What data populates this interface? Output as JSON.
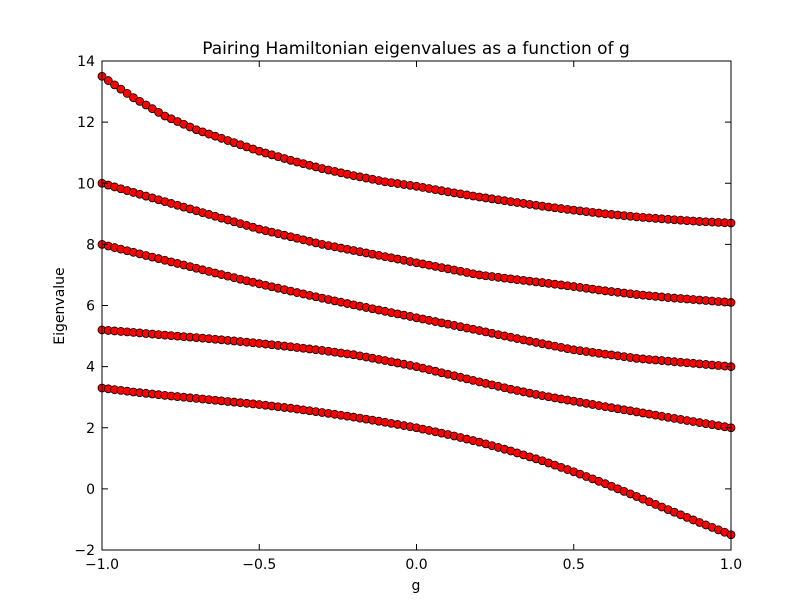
{
  "chart_data": {
    "type": "scatter",
    "title": "Pairing Hamiltonian eigenvalues as a function of g",
    "xlabel": "g",
    "ylabel": "Eigenvalue",
    "xlim": [
      -1.0,
      1.0
    ],
    "ylim": [
      -2,
      14
    ],
    "xticks": [
      -1.0,
      -0.5,
      0.0,
      0.5,
      1.0
    ],
    "xtick_labels": [
      "−1.0",
      "−0.5",
      "0.0",
      "0.5",
      "1.0"
    ],
    "yticks": [
      -2,
      0,
      2,
      4,
      6,
      8,
      10,
      12,
      14
    ],
    "ytick_labels": [
      "−2",
      "0",
      "2",
      "4",
      "6",
      "8",
      "10",
      "12",
      "14"
    ],
    "grid": false,
    "marker_color": "#ff0000",
    "marker_edge_color": "#000000",
    "x": [
      -1.0,
      -0.9,
      -0.8,
      -0.7,
      -0.6,
      -0.5,
      -0.4,
      -0.3,
      -0.2,
      -0.1,
      0.0,
      0.1,
      0.2,
      0.3,
      0.4,
      0.5,
      0.6,
      0.7,
      0.8,
      0.9,
      1.0
    ],
    "series": [
      {
        "values": [
          3.3,
          3.17,
          3.06,
          2.96,
          2.86,
          2.76,
          2.64,
          2.5,
          2.35,
          2.18,
          2.0,
          1.78,
          1.53,
          1.24,
          0.92,
          0.56,
          0.17,
          -0.25,
          -0.68,
          -1.1,
          -1.5
        ]
      },
      {
        "values": [
          5.2,
          5.12,
          5.03,
          4.95,
          4.86,
          4.76,
          4.65,
          4.53,
          4.39,
          4.2,
          4.0,
          3.75,
          3.5,
          3.26,
          3.05,
          2.87,
          2.69,
          2.52,
          2.34,
          2.17,
          2.0
        ]
      },
      {
        "values": [
          8.0,
          7.74,
          7.48,
          7.22,
          6.96,
          6.71,
          6.47,
          6.24,
          6.02,
          5.81,
          5.6,
          5.39,
          5.18,
          4.96,
          4.75,
          4.55,
          4.41,
          4.27,
          4.18,
          4.09,
          4.0
        ]
      },
      {
        "values": [
          10.0,
          9.7,
          9.4,
          9.1,
          8.8,
          8.5,
          8.25,
          8.0,
          7.8,
          7.6,
          7.4,
          7.2,
          7.0,
          6.87,
          6.75,
          6.62,
          6.48,
          6.36,
          6.26,
          6.18,
          6.1
        ]
      },
      {
        "values": [
          13.5,
          12.8,
          12.2,
          11.75,
          11.4,
          11.05,
          10.75,
          10.48,
          10.25,
          10.05,
          9.9,
          9.72,
          9.55,
          9.4,
          9.25,
          9.12,
          9.0,
          8.9,
          8.82,
          8.75,
          8.7
        ]
      }
    ]
  }
}
